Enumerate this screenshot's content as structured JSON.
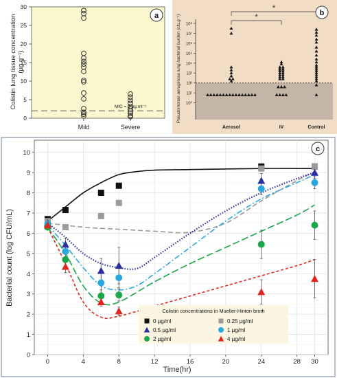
{
  "figure": {
    "panel_labels": [
      "a",
      "b",
      "c"
    ]
  },
  "chart_data": [
    {
      "panel": "a",
      "type": "scatter",
      "ylabel_line1": "Colistin lung tissue concentration",
      "ylabel_line2": "(µg.g⁻¹)",
      "categories": [
        "Mild",
        "Severe"
      ],
      "yticks": [
        0,
        5,
        10,
        15,
        20,
        25,
        30
      ],
      "ylim": [
        0,
        30
      ],
      "reference_line": {
        "y": 2,
        "label": "MIC = 2 µg.ml⁻¹"
      },
      "background": "#fbf7cf",
      "series": [
        {
          "category": "Mild",
          "values": [
            29,
            28.2,
            27,
            17.5,
            16.2,
            15.3,
            14.6,
            13.8,
            12.6,
            10.2,
            9.8,
            6.8,
            5.2,
            2.6,
            1.6,
            1.1,
            0.6
          ]
        },
        {
          "category": "Severe",
          "values": [
            6.5,
            5.7,
            4.8,
            4.0,
            3.2,
            2.5,
            1.9,
            1.3,
            0.8,
            0.4
          ]
        }
      ],
      "grid": false
    },
    {
      "panel": "b",
      "type": "scatter",
      "ylabel": "Pseudomonas aeruginosa lung bacterial burden (cfu.g⁻¹)",
      "yscale": "log",
      "yticks": [
        "10⁰",
        "10¹",
        "10²",
        "10³",
        "10⁴",
        "10⁵",
        "10⁶",
        "10⁷",
        "10⁸"
      ],
      "ylim_log10": [
        -1,
        8
      ],
      "categories": [
        "Aerosol",
        "IV",
        "Control"
      ],
      "detection_limit_log10": 2,
      "background": "#f1dcc5",
      "significance": [
        {
          "from": "Aerosol",
          "to": "Control",
          "label": "*"
        },
        {
          "from": "Aerosol",
          "to": "IV",
          "label": "*"
        }
      ],
      "series": [
        {
          "category": "Aerosol",
          "log10_values": [
            7.5,
            7.0,
            3.6,
            3.3,
            3.0,
            2.7,
            2.4,
            2.3,
            2.2,
            0.8,
            0.8,
            0.8,
            0.8,
            0.8,
            0.8,
            0.8,
            0.8,
            0.8,
            0.8,
            0.8,
            0.8,
            0.8,
            0.8,
            0.8,
            0.8
          ]
        },
        {
          "category": "IV",
          "log10_values": [
            4.1,
            3.9,
            3.6,
            3.5,
            3.4,
            3.3,
            3.2,
            3.1,
            3.0,
            2.9,
            2.8,
            2.7,
            2.6,
            2.5,
            2.4,
            2.3,
            1.6,
            1.6,
            1.6,
            0.8,
            0.8,
            0.8,
            0.8
          ]
        },
        {
          "category": "Control",
          "log10_values": [
            7.4,
            7.1,
            6.8,
            6.4,
            6.1,
            5.6,
            5.2,
            4.8,
            4.4,
            4.1,
            3.8,
            3.6,
            3.4,
            3.2,
            3.0,
            2.8,
            2.6,
            2.4,
            2.2,
            1.8,
            0.8
          ]
        }
      ],
      "grid": false
    },
    {
      "panel": "c",
      "type": "line",
      "xlabel": "Time(hr)",
      "ylabel": "Bacterial count (log CFU/mL)",
      "xlim": [
        -1.5,
        31.5
      ],
      "ylim": [
        0,
        10.6
      ],
      "xticks": [
        0,
        4,
        8,
        12,
        16,
        20,
        24,
        28,
        30
      ],
      "yticks": [
        0,
        1,
        2,
        3,
        4,
        5,
        6,
        7,
        8,
        9,
        10
      ],
      "grid": true,
      "legend": {
        "title": "Colistin concentrations in  Mueller-Hinton broth",
        "placement": "bottom-center"
      },
      "series": [
        {
          "name": "0 µg/ml",
          "color": "#111111",
          "marker": "square",
          "dash": "solid",
          "points": [
            [
              0,
              6.7
            ],
            [
              2,
              7.15
            ],
            [
              6,
              8.0
            ],
            [
              8,
              8.35
            ],
            [
              24,
              9.3
            ],
            [
              30,
              9.3
            ]
          ],
          "errors": [
            0,
            0,
            0,
            0,
            0,
            0
          ],
          "curve": [
            [
              0,
              6.6
            ],
            [
              2,
              7.3
            ],
            [
              4,
              8.0
            ],
            [
              6,
              8.5
            ],
            [
              8,
              8.9
            ],
            [
              10,
              9.05
            ],
            [
              12,
              9.12
            ],
            [
              16,
              9.15
            ],
            [
              24,
              9.2
            ],
            [
              30,
              9.2
            ]
          ]
        },
        {
          "name": "0.25 µg/ml",
          "color": "#9a9a9a",
          "marker": "square",
          "dash": "dashed",
          "points": [
            [
              0,
              6.6
            ],
            [
              2,
              6.3
            ],
            [
              6,
              6.85
            ],
            [
              8,
              7.5
            ],
            [
              24,
              9.2
            ],
            [
              30,
              9.3
            ]
          ],
          "errors": [
            0,
            0,
            0,
            0,
            0,
            0
          ],
          "curve": [
            [
              0,
              6.5
            ],
            [
              4,
              6.3
            ],
            [
              8,
              6.2
            ],
            [
              12,
              6.1
            ],
            [
              16,
              6.05
            ],
            [
              20,
              6.5
            ],
            [
              24,
              7.6
            ],
            [
              28,
              8.6
            ],
            [
              30,
              9.05
            ]
          ]
        },
        {
          "name": "0.5 µg/ml",
          "color": "#2b2fa3",
          "marker": "triangle",
          "dash": "dotted",
          "points": [
            [
              0,
              6.5
            ],
            [
              2,
              5.45
            ],
            [
              6,
              4.15
            ],
            [
              8,
              4.4
            ],
            [
              24,
              8.6
            ],
            [
              30,
              9.0
            ]
          ],
          "errors": [
            0,
            0.3,
            0.6,
            0.9,
            0.35,
            0.3
          ],
          "curve": [
            [
              0,
              6.5
            ],
            [
              2,
              5.8
            ],
            [
              4,
              5.0
            ],
            [
              6,
              4.5
            ],
            [
              8,
              4.3
            ],
            [
              10,
              4.25
            ],
            [
              12,
              4.8
            ],
            [
              16,
              6.0
            ],
            [
              20,
              7.1
            ],
            [
              24,
              8.0
            ],
            [
              28,
              8.7
            ],
            [
              30,
              9.0
            ]
          ]
        },
        {
          "name": "1 µg/ml",
          "color": "#29a8df",
          "marker": "circle",
          "dash": "dashdot",
          "points": [
            [
              0,
              6.45
            ],
            [
              2,
              5.1
            ],
            [
              6,
              3.55
            ],
            [
              8,
              3.8
            ],
            [
              24,
              8.2
            ],
            [
              30,
              8.5
            ]
          ],
          "errors": [
            0,
            0.3,
            0.5,
            0.5,
            0.3,
            0.3
          ],
          "curve": [
            [
              0,
              6.4
            ],
            [
              2,
              5.4
            ],
            [
              4,
              4.3
            ],
            [
              6,
              3.4
            ],
            [
              8,
              3.2
            ],
            [
              10,
              3.4
            ],
            [
              12,
              4.0
            ],
            [
              16,
              5.3
            ],
            [
              20,
              6.6
            ],
            [
              24,
              7.7
            ],
            [
              28,
              8.5
            ],
            [
              30,
              8.9
            ]
          ]
        },
        {
          "name": "2 µg/ml",
          "color": "#1aa64b",
          "marker": "circle",
          "dash": "longdash",
          "points": [
            [
              0,
              6.3
            ],
            [
              2,
              4.7
            ],
            [
              6,
              2.9
            ],
            [
              8,
              2.95
            ],
            [
              24,
              5.45
            ],
            [
              30,
              6.4
            ]
          ],
          "errors": [
            0,
            0.3,
            0.3,
            0.3,
            0.7,
            0.7
          ],
          "curve": [
            [
              0,
              6.3
            ],
            [
              2,
              5.0
            ],
            [
              4,
              3.4
            ],
            [
              6,
              2.55
            ],
            [
              8,
              2.6
            ],
            [
              12,
              3.6
            ],
            [
              16,
              4.5
            ],
            [
              20,
              5.3
            ],
            [
              24,
              6.1
            ],
            [
              28,
              6.9
            ],
            [
              30,
              7.4
            ]
          ]
        },
        {
          "name": "4 µg/ml",
          "color": "#e3241b",
          "marker": "triangle",
          "dash": "shortdash",
          "points": [
            [
              0,
              6.4
            ],
            [
              2,
              4.35
            ],
            [
              6,
              2.6
            ],
            [
              8,
              2.15
            ],
            [
              24,
              3.1
            ],
            [
              30,
              3.75
            ]
          ],
          "errors": [
            0,
            0.3,
            0.2,
            0.2,
            0.6,
            0.95
          ],
          "curve": [
            [
              0,
              6.3
            ],
            [
              2,
              4.5
            ],
            [
              4,
              2.6
            ],
            [
              6,
              1.85
            ],
            [
              8,
              1.9
            ],
            [
              12,
              2.4
            ],
            [
              16,
              2.9
            ],
            [
              20,
              3.4
            ],
            [
              24,
              3.9
            ],
            [
              28,
              4.4
            ],
            [
              30,
              4.7
            ]
          ]
        }
      ]
    }
  ]
}
